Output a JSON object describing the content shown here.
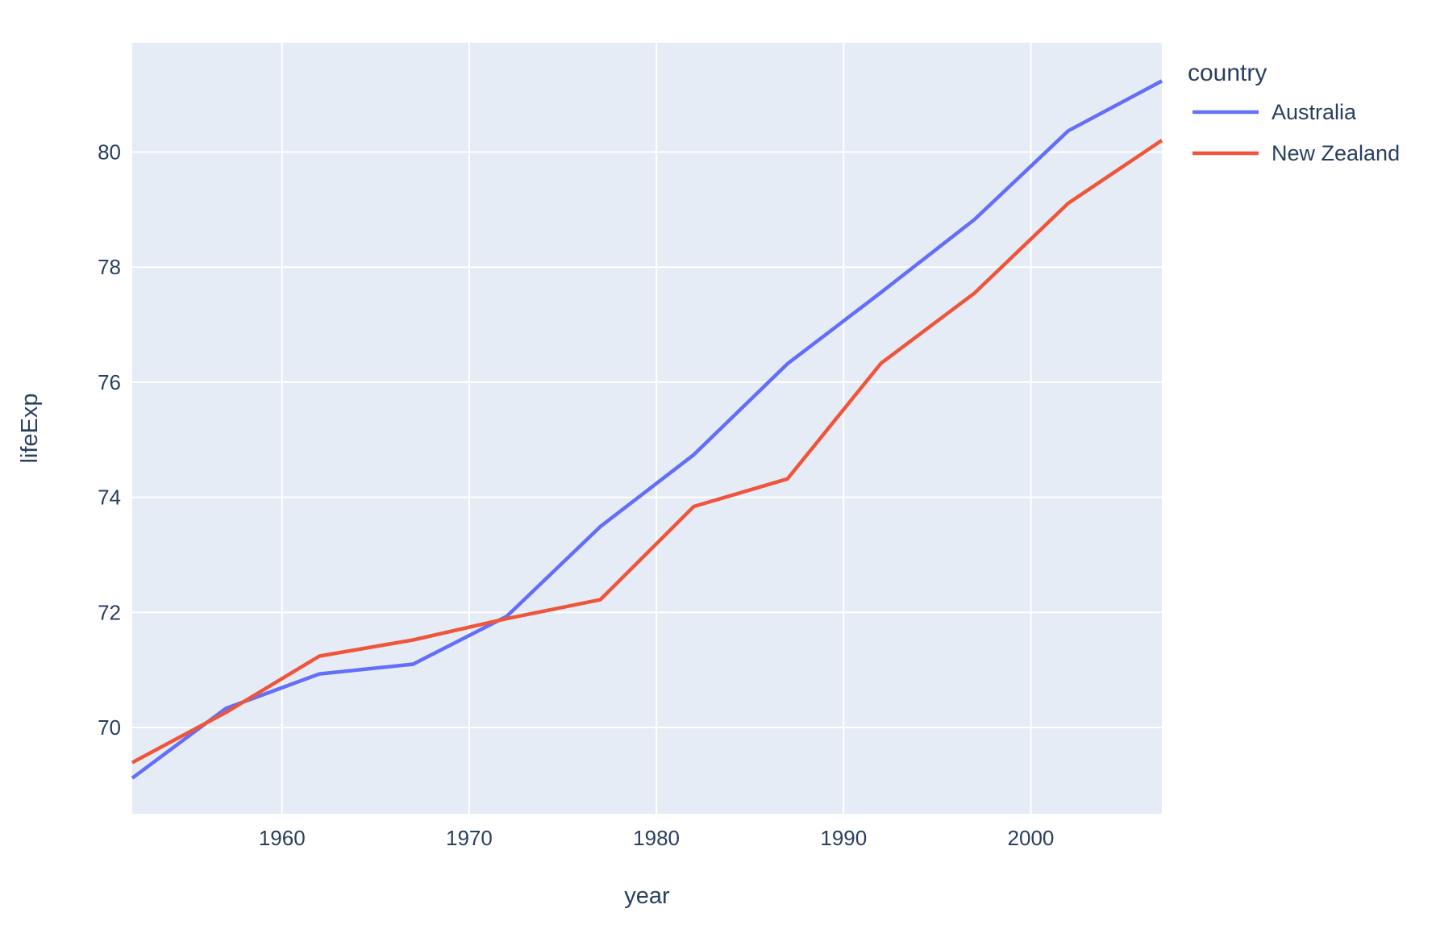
{
  "chart_data": {
    "type": "line",
    "title": "",
    "xlabel": "year",
    "ylabel": "lifeExp",
    "legend_title": "country",
    "x": [
      1952,
      1957,
      1962,
      1967,
      1972,
      1977,
      1982,
      1987,
      1992,
      1997,
      2002,
      2007
    ],
    "series": [
      {
        "name": "Australia",
        "color": "#636EFA",
        "values": [
          69.12,
          70.33,
          70.93,
          71.1,
          71.93,
          73.49,
          74.74,
          76.32,
          77.56,
          78.83,
          80.37,
          81.235
        ]
      },
      {
        "name": "New Zealand",
        "color": "#EF553B",
        "values": [
          69.39,
          70.26,
          71.24,
          71.52,
          71.89,
          72.22,
          73.84,
          74.32,
          76.33,
          77.55,
          79.11,
          80.204
        ]
      }
    ],
    "xlim": [
      1952,
      2007
    ],
    "ylim": [
      68.5,
      81.9
    ],
    "xticks": [
      1960,
      1970,
      1980,
      1990,
      2000
    ],
    "yticks": [
      70,
      72,
      74,
      76,
      78,
      80
    ],
    "grid": true,
    "legend_position": "right-top",
    "colors": {
      "plot_background": "#E5ECF6",
      "paper_background": "#FFFFFF",
      "gridline": "#FFFFFF",
      "font": "#2A3F5F"
    }
  }
}
